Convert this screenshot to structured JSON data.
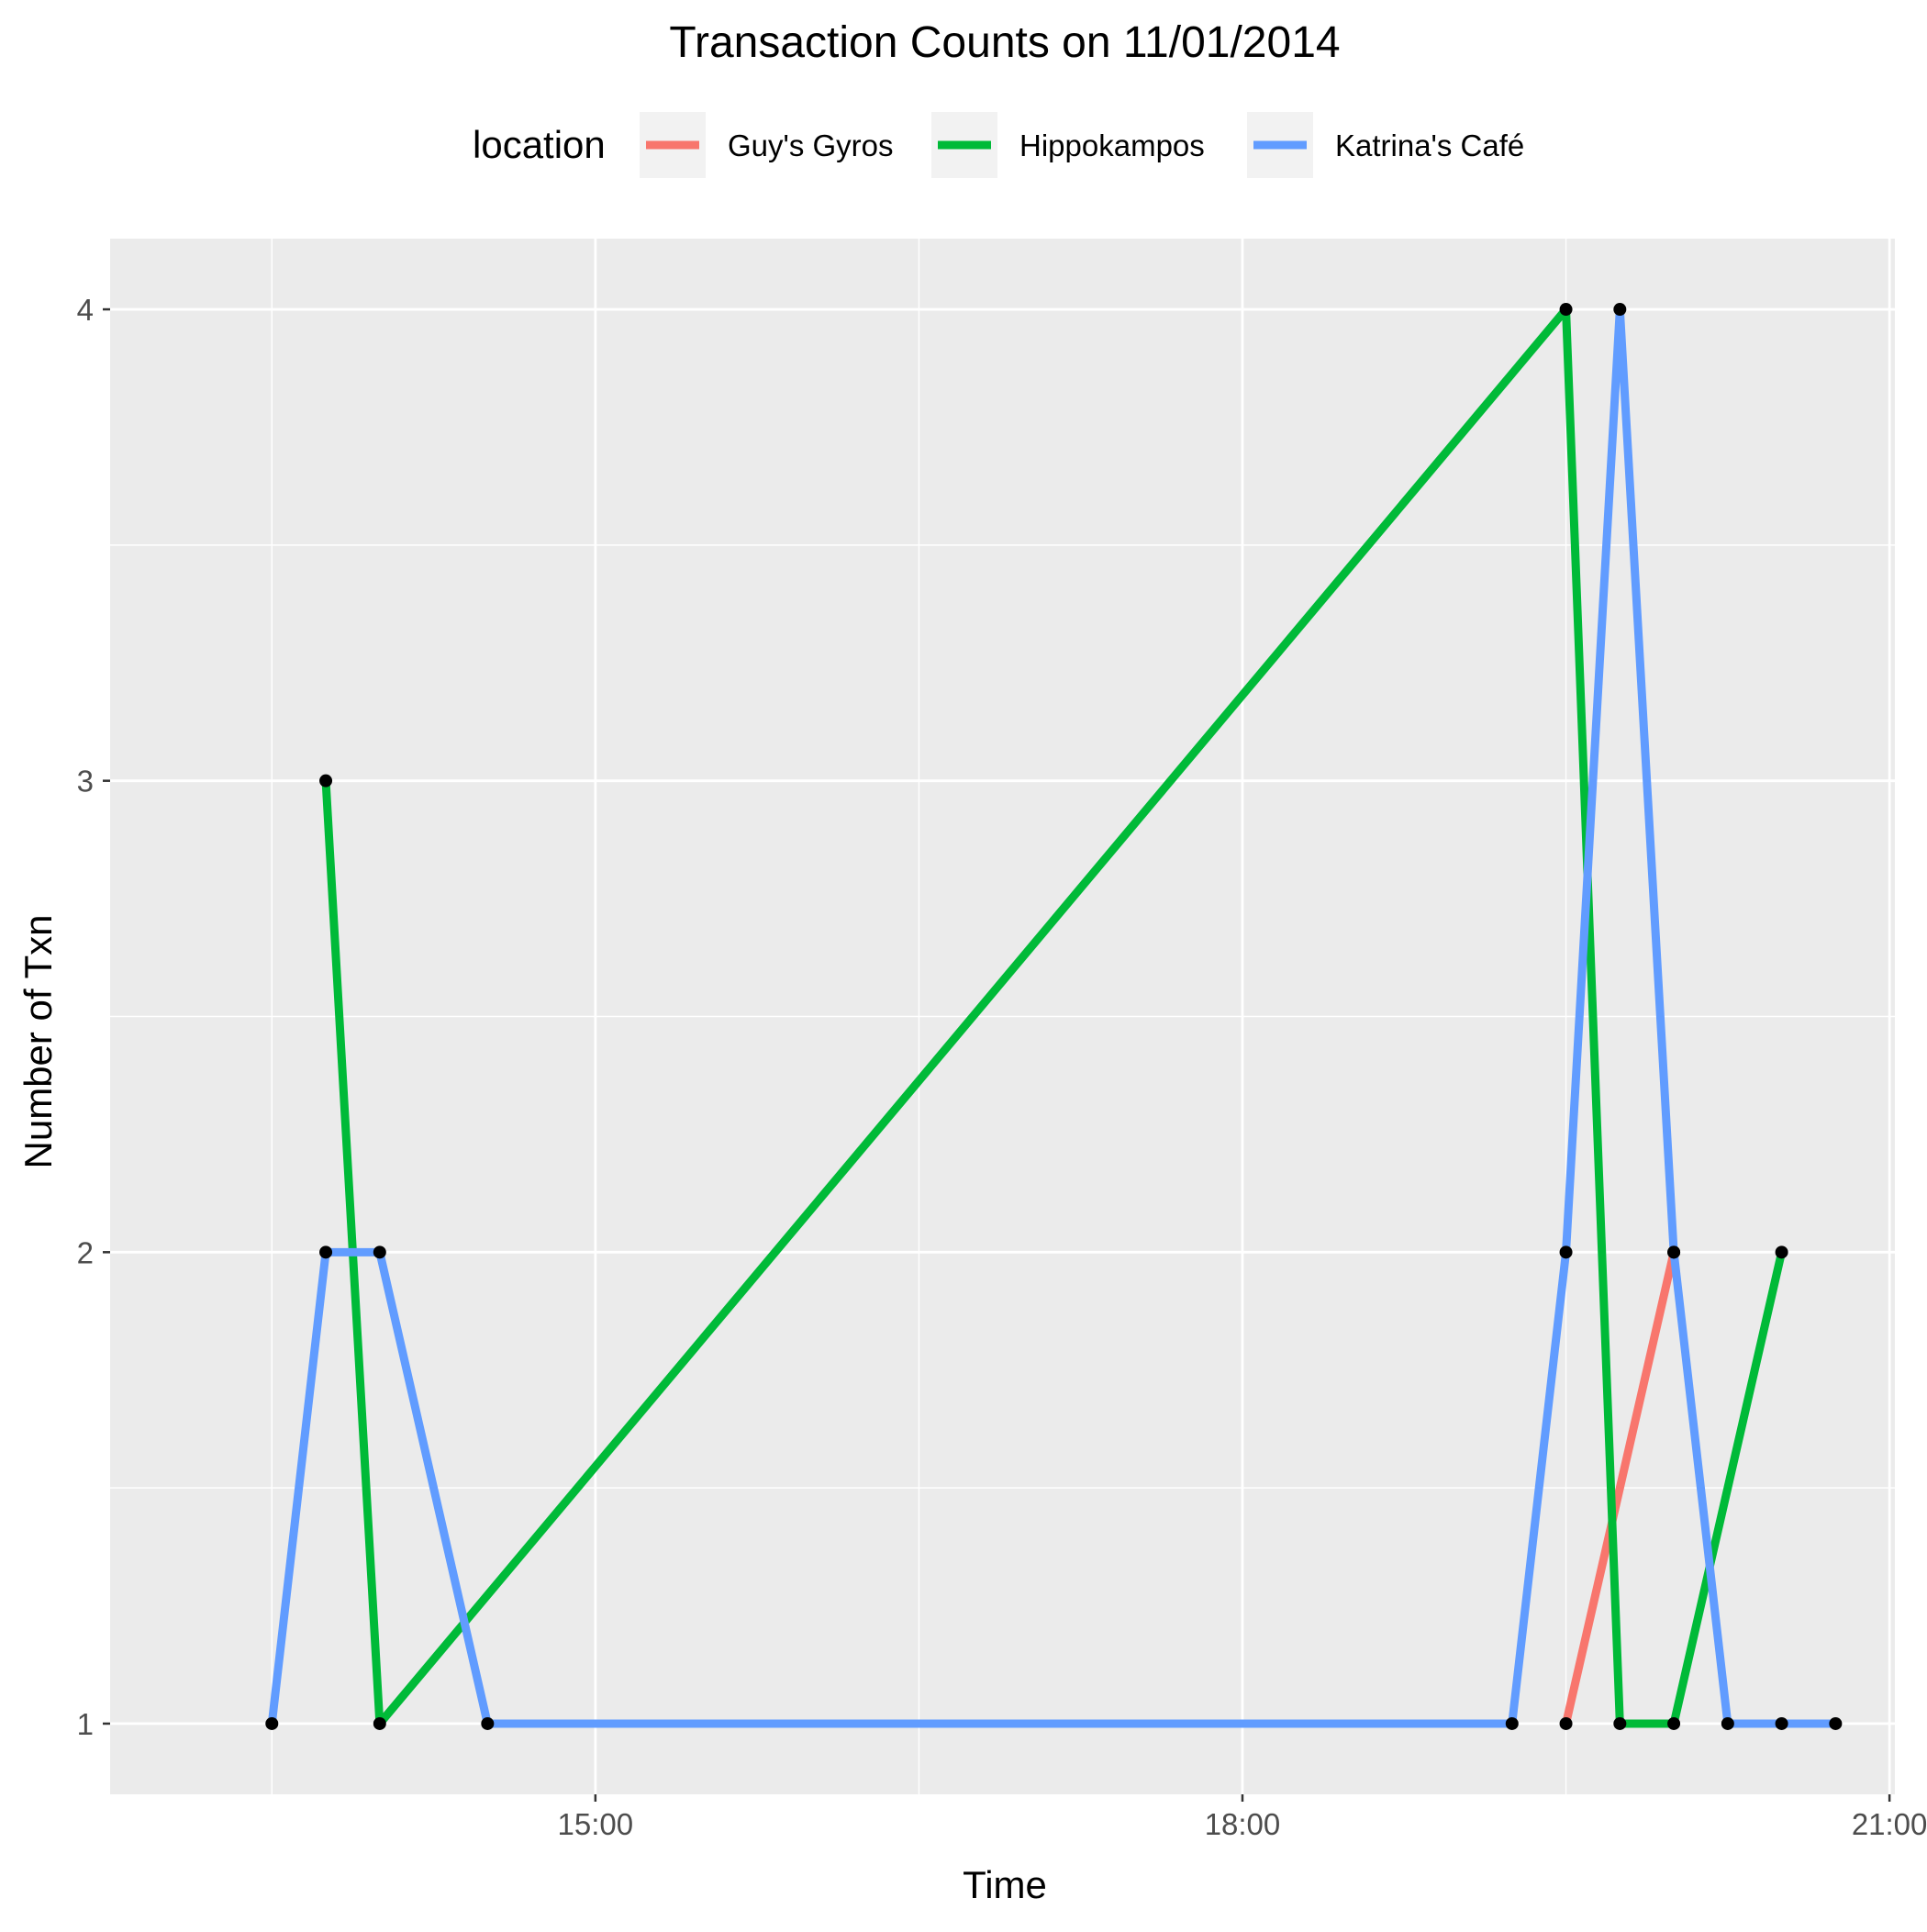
{
  "chart_data": {
    "type": "line",
    "title": "Transaction Counts on 11/01/2014",
    "xlabel": "Time",
    "ylabel": "Number of Txn",
    "legend": {
      "title": "location",
      "placement": "top"
    },
    "grid": true,
    "xlim": [
      "12:45",
      "21:00"
    ],
    "ylim": [
      0.85,
      4.15
    ],
    "x_ticks": [
      "15:00",
      "18:00",
      "21:00"
    ],
    "y_ticks": [
      1,
      2,
      3,
      4
    ],
    "series": [
      {
        "name": "Guy's Gyros",
        "color": "#F8766D",
        "x": [
          "19:30",
          "20:00"
        ],
        "y": [
          1,
          2
        ]
      },
      {
        "name": "Hippokampos",
        "color": "#00BA38",
        "x": [
          "13:45",
          "14:00",
          "19:30",
          "19:45",
          "20:00",
          "20:30"
        ],
        "y": [
          3,
          1,
          4,
          1,
          1,
          2
        ]
      },
      {
        "name": "Katrina's Café",
        "color": "#619CFF",
        "x": [
          "13:30",
          "13:45",
          "14:00",
          "14:30",
          "19:15",
          "19:30",
          "19:45",
          "20:00",
          "20:15",
          "20:30",
          "20:45"
        ],
        "y": [
          1,
          2,
          2,
          1,
          1,
          2,
          4,
          2,
          1,
          1,
          1
        ]
      }
    ]
  }
}
